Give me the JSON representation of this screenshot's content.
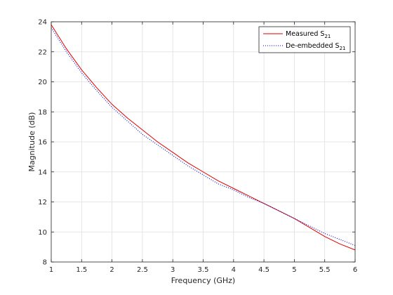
{
  "chart_data": {
    "type": "line",
    "title": "",
    "xlabel": "Frequency (GHz)",
    "ylabel": "Magnitude (dB)",
    "xlim": [
      1,
      6
    ],
    "ylim": [
      8,
      24
    ],
    "xticks": [
      1,
      1.5,
      2,
      2.5,
      3,
      3.5,
      4,
      4.5,
      5,
      5.5,
      6
    ],
    "xtick_labels": [
      "1",
      "1.5",
      "2",
      "2.5",
      "3",
      "3.5",
      "4",
      "4.5",
      "5",
      "5.5",
      "6"
    ],
    "yticks": [
      8,
      10,
      12,
      14,
      16,
      18,
      20,
      22,
      24
    ],
    "ytick_labels": [
      "8",
      "10",
      "12",
      "14",
      "16",
      "18",
      "20",
      "22",
      "24"
    ],
    "grid": true,
    "legend_position": "top-right",
    "series": [
      {
        "name": "Measured S",
        "name_subscript": "21",
        "color": "#e00000",
        "style": "solid",
        "x": [
          1.0,
          1.25,
          1.5,
          1.75,
          2.0,
          2.25,
          2.5,
          2.75,
          3.0,
          3.25,
          3.5,
          3.75,
          4.0,
          4.25,
          4.5,
          4.75,
          5.0,
          5.25,
          5.5,
          5.75,
          6.0
        ],
        "y": [
          23.8,
          22.2,
          20.8,
          19.6,
          18.5,
          17.6,
          16.8,
          16.0,
          15.3,
          14.6,
          14.0,
          13.4,
          12.9,
          12.4,
          11.9,
          11.4,
          10.9,
          10.3,
          9.7,
          9.2,
          8.8
        ]
      },
      {
        "name": "De-embedded S",
        "name_subscript": "21",
        "color": "#0000cc",
        "style": "dotted",
        "x": [
          1.0,
          1.25,
          1.5,
          1.75,
          2.0,
          2.25,
          2.5,
          2.75,
          3.0,
          3.25,
          3.5,
          3.75,
          4.0,
          4.25,
          4.5,
          4.75,
          5.0,
          5.25,
          5.5,
          5.75,
          6.0
        ],
        "y": [
          23.6,
          22.0,
          20.6,
          19.4,
          18.3,
          17.4,
          16.5,
          15.8,
          15.1,
          14.4,
          13.8,
          13.2,
          12.8,
          12.3,
          11.9,
          11.4,
          10.9,
          10.4,
          9.9,
          9.5,
          9.1
        ]
      }
    ]
  }
}
